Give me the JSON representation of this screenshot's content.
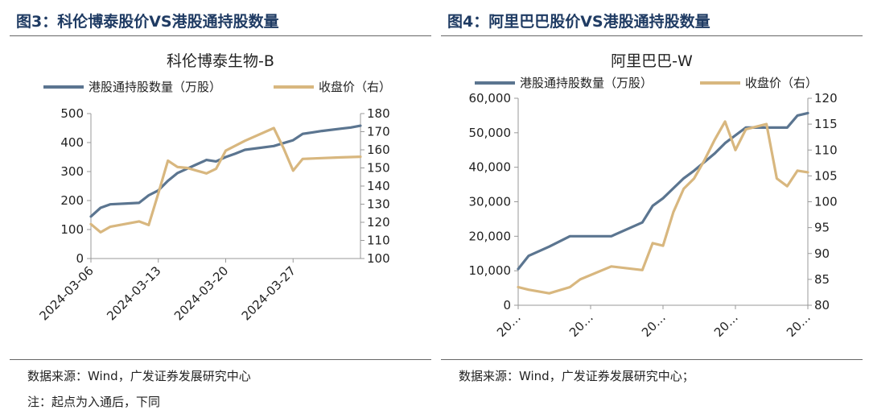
{
  "chart_data": [
    {
      "type": "line",
      "figure_label": "图3：科伦博泰股价VS港股通持股数量",
      "title": "科伦博泰生物-B",
      "series": [
        {
          "name": "港股通持股数量（万股）",
          "axis": "left",
          "color": "#5b7590",
          "x": [
            0,
            1,
            2,
            5,
            6,
            7,
            8,
            9,
            10,
            11,
            12,
            13,
            14,
            15,
            16,
            19,
            20,
            21,
            22,
            23,
            24,
            26,
            27,
            28
          ],
          "values": [
            145,
            175,
            187,
            192,
            218,
            235,
            268,
            295,
            310,
            325,
            340,
            335,
            350,
            362,
            375,
            388,
            398,
            408,
            430,
            435,
            440,
            448,
            452,
            458
          ]
        },
        {
          "name": "收盘价（右）",
          "axis": "right",
          "color": "#d8b77f",
          "x": [
            0,
            1,
            2,
            5,
            6,
            7,
            8,
            9,
            10,
            11,
            12,
            13,
            14,
            16,
            19,
            20,
            21,
            22,
            23,
            24,
            26,
            27,
            28
          ],
          "values": [
            119,
            114.5,
            117.5,
            120.5,
            118.5,
            136,
            154,
            150.5,
            150,
            148.5,
            147,
            149.5,
            159.5,
            165,
            172,
            161,
            148.5,
            155,
            155.2,
            155.4,
            155.8,
            156,
            156.2
          ]
        }
      ],
      "x_range": [
        0,
        28
      ],
      "x_tick_positions": [
        0,
        7,
        14,
        21
      ],
      "x_tick_labels": [
        "2024-03-06",
        "2024-03-13",
        "2024-03-20",
        "2024-03-27"
      ],
      "ylim_left": [
        0,
        500
      ],
      "yticks_left": [
        "0",
        "100",
        "200",
        "300",
        "400",
        "500"
      ],
      "ylim_right": [
        100,
        180
      ],
      "yticks_right": [
        "100",
        "110",
        "120",
        "130",
        "140",
        "150",
        "160",
        "170",
        "180"
      ],
      "legend_position": "top"
    },
    {
      "type": "line",
      "figure_label": "图4：阿里巴巴股价VS港股通持股数量",
      "title": "阿里巴巴-W",
      "series": [
        {
          "name": "港股通持股数量（万股）",
          "axis": "left",
          "color": "#5b7590",
          "x": [
            0,
            1,
            3,
            5,
            6,
            9,
            12,
            13,
            14,
            16,
            17,
            19,
            20,
            22,
            23,
            24,
            25,
            26,
            27,
            28
          ],
          "values": [
            10500,
            14300,
            17000,
            20000,
            20000,
            20000,
            24000,
            28800,
            31000,
            36800,
            39000,
            44000,
            47000,
            51500,
            51500,
            51500,
            51500,
            51500,
            55000,
            55700
          ]
        },
        {
          "name": "收盘价（右）",
          "axis": "right",
          "color": "#d8b77f",
          "x": [
            0,
            1,
            3,
            5,
            6,
            9,
            12,
            13,
            14,
            15,
            16,
            17,
            18,
            19,
            20,
            21,
            22,
            23,
            24,
            25,
            26,
            27,
            28
          ],
          "values": [
            83.5,
            83,
            82.3,
            83.5,
            85,
            87.5,
            86.8,
            92,
            91.5,
            98,
            102.5,
            104.5,
            108,
            112,
            115.5,
            110,
            114,
            114.5,
            115,
            104.5,
            103,
            106,
            105.7
          ]
        }
      ],
      "x_range": [
        0,
        28
      ],
      "x_tick_positions": [
        0,
        7,
        14,
        21,
        28
      ],
      "x_tick_labels": [
        "20…",
        "20…",
        "20…",
        "20…",
        "20…"
      ],
      "ylim_left": [
        0,
        60000
      ],
      "yticks_left": [
        "0",
        "10,000",
        "20,000",
        "30,000",
        "40,000",
        "50,000",
        "60,000"
      ],
      "ylim_right": [
        80,
        120
      ],
      "yticks_right": [
        "80",
        "85",
        "90",
        "95",
        "100",
        "105",
        "110",
        "115",
        "120"
      ],
      "legend_position": "top"
    }
  ],
  "footer": {
    "left_source": "数据来源：Wind，广发证券发展研究中心",
    "left_note": "注：起点为入通后，下同",
    "right_source": "数据来源：Wind，广发证券发展研究中心；"
  }
}
